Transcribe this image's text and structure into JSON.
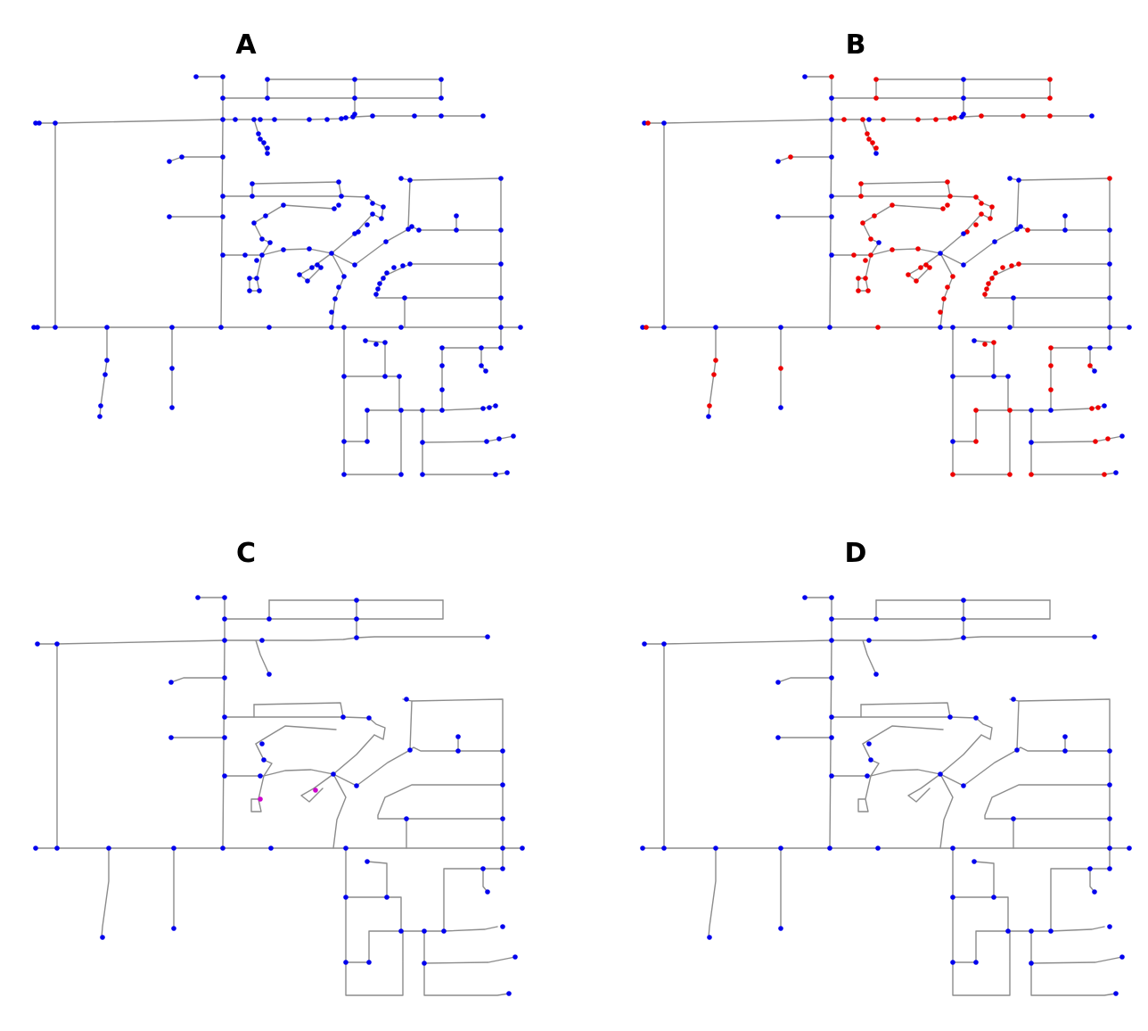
{
  "panels": [
    {
      "id": "A",
      "label": "A",
      "variant": "dense"
    },
    {
      "id": "B",
      "label": "B",
      "variant": "dense-marked"
    },
    {
      "id": "C",
      "label": "C",
      "variant": "simplified-highlight"
    },
    {
      "id": "D",
      "label": "D",
      "variant": "simplified"
    }
  ],
  "colors": {
    "edge": "#8c8c8c",
    "node": "#0000ee",
    "removed_node": "#ee0000",
    "highlight_node": "#cc00cc",
    "label": "#000000"
  }
}
